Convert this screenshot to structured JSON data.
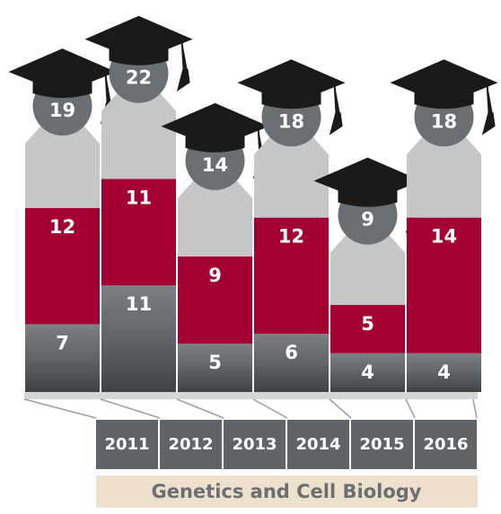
{
  "chart_data": {
    "type": "bar",
    "stacked": true,
    "title": "Genetics and Cell Biology",
    "categories": [
      "2011",
      "2012",
      "2013",
      "2014",
      "2015",
      "2016"
    ],
    "series": [
      {
        "color": "#5e6468",
        "values": [
          7,
          11,
          5,
          6,
          4,
          4
        ]
      },
      {
        "color": "#a50034",
        "values": [
          12,
          11,
          9,
          12,
          5,
          14
        ]
      }
    ],
    "totals": [
      19,
      22,
      14,
      18,
      9,
      18
    ]
  }
}
